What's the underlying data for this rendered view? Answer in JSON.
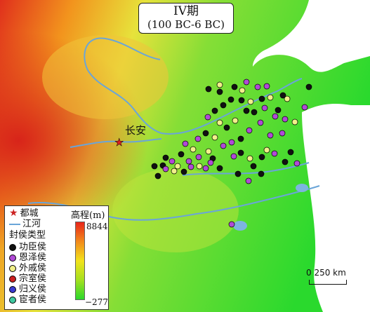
{
  "map": {
    "title_line1": "IV期",
    "title_line2": "(100 BC-6 BC)",
    "capital_label": "长安"
  },
  "legend": {
    "capital": "都城",
    "river": "江河",
    "type_heading": "封侯类型",
    "types": [
      {
        "label": "功臣侯",
        "color": "#111111"
      },
      {
        "label": "恩泽侯",
        "color": "#b04ad6"
      },
      {
        "label": "外戚侯",
        "color": "#f1f08a"
      },
      {
        "label": "宗室侯",
        "color": "#cc2020"
      },
      {
        "label": "归义侯",
        "color": "#3a3ad0"
      },
      {
        "label": "宦者侯",
        "color": "#3fc8a0"
      }
    ],
    "elevation_title": "高程(m)",
    "elevation_max": "8844",
    "elevation_min": "−277"
  },
  "scale": {
    "label": "0    250 km"
  },
  "colors": {
    "river": "#6aa5d8",
    "sea": "#ffffff"
  }
}
